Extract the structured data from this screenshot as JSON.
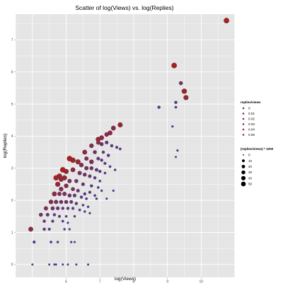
{
  "chart_data": {
    "type": "scatter",
    "title": "Scatter of log(Views) vs. log(Replies)",
    "xlabel": "log(Views)",
    "ylabel": "log(Replies)",
    "xlim": [
      4.5,
      11.0
    ],
    "ylim": [
      -0.4,
      7.8
    ],
    "x_ticks": [
      6,
      7,
      8,
      9,
      10
    ],
    "y_ticks": [
      0,
      1,
      2,
      3,
      4,
      5,
      6,
      7
    ],
    "grid": true,
    "color_scale": {
      "low": "#4b3f8f",
      "high": "#9e2424"
    },
    "legend_color": {
      "title": "replies/views",
      "entries": [
        {
          "label": "0",
          "value": 0
        },
        {
          "label": "0.01",
          "value": 0.01
        },
        {
          "label": "0.02",
          "value": 0.02
        },
        {
          "label": "0.03",
          "value": 0.03
        },
        {
          "label": "0.04",
          "value": 0.04
        },
        {
          "label": "0.05",
          "value": 0.05
        }
      ]
    },
    "legend_size": {
      "title": "(replies/views) * 1000",
      "entries": [
        {
          "label": "0",
          "value": 0
        },
        {
          "label": "10",
          "value": 10
        },
        {
          "label": "20",
          "value": 20
        },
        {
          "label": "30",
          "value": 30
        },
        {
          "label": "40",
          "value": 40
        },
        {
          "label": "50",
          "value": 50
        }
      ]
    },
    "points": [
      [
        10.75,
        7.6,
        0.05
      ],
      [
        9.2,
        6.2,
        0.05
      ],
      [
        9.4,
        5.65,
        0.02
      ],
      [
        9.5,
        5.4,
        0.045
      ],
      [
        9.55,
        5.2,
        0.04
      ],
      [
        8.75,
        4.9,
        0.01
      ],
      [
        9.25,
        5.05,
        0.01
      ],
      [
        9.25,
        4.9,
        0.005
      ],
      [
        7.6,
        4.35,
        0.04
      ],
      [
        7.4,
        4.25,
        0.035
      ],
      [
        9.15,
        4.3,
        0.003
      ],
      [
        7.3,
        4.1,
        0.035
      ],
      [
        7.2,
        4.05,
        0.03
      ],
      [
        7.05,
        3.95,
        0.035
      ],
      [
        6.95,
        3.9,
        0.04
      ],
      [
        6.95,
        3.8,
        0.025
      ],
      [
        7.05,
        3.75,
        0.02
      ],
      [
        7.2,
        3.8,
        0.015
      ],
      [
        7.35,
        3.7,
        0.01
      ],
      [
        7.5,
        3.65,
        0.008
      ],
      [
        7.6,
        3.6,
        0.005
      ],
      [
        6.75,
        3.7,
        0.03
      ],
      [
        6.85,
        3.5,
        0.02
      ],
      [
        7.1,
        3.5,
        0.01
      ],
      [
        7.25,
        3.4,
        0.01
      ],
      [
        9.3,
        3.55,
        0.003
      ],
      [
        9.25,
        3.35,
        0.002
      ],
      [
        6.55,
        3.5,
        0.035
      ],
      [
        6.6,
        3.3,
        0.025
      ],
      [
        6.75,
        3.2,
        0.03
      ],
      [
        6.95,
        3.3,
        0.015
      ],
      [
        7.05,
        3.25,
        0.01
      ],
      [
        7.15,
        3.15,
        0.008
      ],
      [
        7.3,
        3.05,
        0.005
      ],
      [
        7.45,
        2.95,
        0.004
      ],
      [
        6.1,
        3.3,
        0.05
      ],
      [
        6.2,
        3.25,
        0.045
      ],
      [
        6.35,
        3.2,
        0.04
      ],
      [
        6.45,
        3.1,
        0.03
      ],
      [
        6.6,
        3.0,
        0.025
      ],
      [
        6.75,
        3.0,
        0.02
      ],
      [
        6.9,
        2.95,
        0.015
      ],
      [
        7.0,
        2.9,
        0.01
      ],
      [
        7.15,
        2.85,
        0.005
      ],
      [
        5.9,
        2.95,
        0.05
      ],
      [
        6.0,
        2.9,
        0.04
      ],
      [
        6.2,
        2.95,
        0.035
      ],
      [
        6.4,
        2.85,
        0.025
      ],
      [
        6.55,
        2.8,
        0.02
      ],
      [
        6.7,
        2.75,
        0.015
      ],
      [
        6.85,
        2.7,
        0.01
      ],
      [
        7.0,
        2.6,
        0.005
      ],
      [
        5.8,
        2.75,
        0.05
      ],
      [
        5.7,
        2.7,
        0.045
      ],
      [
        5.95,
        2.7,
        0.04
      ],
      [
        5.85,
        2.65,
        0.035
      ],
      [
        6.1,
        2.6,
        0.025
      ],
      [
        6.3,
        2.6,
        0.02
      ],
      [
        6.5,
        2.5,
        0.015
      ],
      [
        6.75,
        2.45,
        0.01
      ],
      [
        6.95,
        2.4,
        0.005
      ],
      [
        7.05,
        2.3,
        0.004
      ],
      [
        7.4,
        2.3,
        0.003
      ],
      [
        7.2,
        2.05,
        0.003
      ],
      [
        5.75,
        2.5,
        0.04
      ],
      [
        5.85,
        2.35,
        0.03
      ],
      [
        6.0,
        2.45,
        0.03
      ],
      [
        6.2,
        2.35,
        0.02
      ],
      [
        6.35,
        2.3,
        0.015
      ],
      [
        6.55,
        2.2,
        0.01
      ],
      [
        6.7,
        2.25,
        0.008
      ],
      [
        6.85,
        2.15,
        0.005
      ],
      [
        5.65,
        2.2,
        0.035
      ],
      [
        5.8,
        2.2,
        0.025
      ],
      [
        5.95,
        2.2,
        0.025
      ],
      [
        6.1,
        2.15,
        0.02
      ],
      [
        6.25,
        2.15,
        0.015
      ],
      [
        6.45,
        2.1,
        0.01
      ],
      [
        6.6,
        2.05,
        0.005
      ],
      [
        6.9,
        2.05,
        0.004
      ],
      [
        5.55,
        1.95,
        0.03
      ],
      [
        5.7,
        1.95,
        0.025
      ],
      [
        5.85,
        1.95,
        0.02
      ],
      [
        6.0,
        1.95,
        0.02
      ],
      [
        6.15,
        1.95,
        0.015
      ],
      [
        6.3,
        1.9,
        0.01
      ],
      [
        6.5,
        1.85,
        0.005
      ],
      [
        6.65,
        1.8,
        0.004
      ],
      [
        5.4,
        1.75,
        0.025
      ],
      [
        5.6,
        1.75,
        0.02
      ],
      [
        5.75,
        1.75,
        0.015
      ],
      [
        5.9,
        1.75,
        0.01
      ],
      [
        6.05,
        1.75,
        0.01
      ],
      [
        6.2,
        1.75,
        0.008
      ],
      [
        6.4,
        1.7,
        0.005
      ],
      [
        6.55,
        1.65,
        0.004
      ],
      [
        6.7,
        1.6,
        0.003
      ],
      [
        5.25,
        1.55,
        0.02
      ],
      [
        5.45,
        1.55,
        0.015
      ],
      [
        5.65,
        1.55,
        0.01
      ],
      [
        5.8,
        1.5,
        0.008
      ],
      [
        6.0,
        1.5,
        0.005
      ],
      [
        6.25,
        1.5,
        0.004
      ],
      [
        5.35,
        1.35,
        0.01
      ],
      [
        5.6,
        1.35,
        0.008
      ],
      [
        5.9,
        1.35,
        0.005
      ],
      [
        6.05,
        1.3,
        0.003
      ],
      [
        4.95,
        1.1,
        0.035
      ],
      [
        5.35,
        1.1,
        0.01
      ],
      [
        5.5,
        1.1,
        0.008
      ],
      [
        5.95,
        1.1,
        0.004
      ],
      [
        6.1,
        1.1,
        0.003
      ],
      [
        5.05,
        0.7,
        0.008
      ],
      [
        5.55,
        0.7,
        0.005
      ],
      [
        5.75,
        0.7,
        0.004
      ],
      [
        6.15,
        0.7,
        0.003
      ],
      [
        6.25,
        0.7,
        0.002
      ],
      [
        5.0,
        0.0,
        0.002
      ],
      [
        5.5,
        0.0,
        0.002
      ],
      [
        5.65,
        0.0,
        0.002
      ],
      [
        5.7,
        0.0,
        0.002
      ],
      [
        5.9,
        0.0,
        0.002
      ],
      [
        6.05,
        0.0,
        0.002
      ],
      [
        6.3,
        0.0,
        0.002
      ],
      [
        6.65,
        0.0,
        0.002
      ]
    ]
  }
}
